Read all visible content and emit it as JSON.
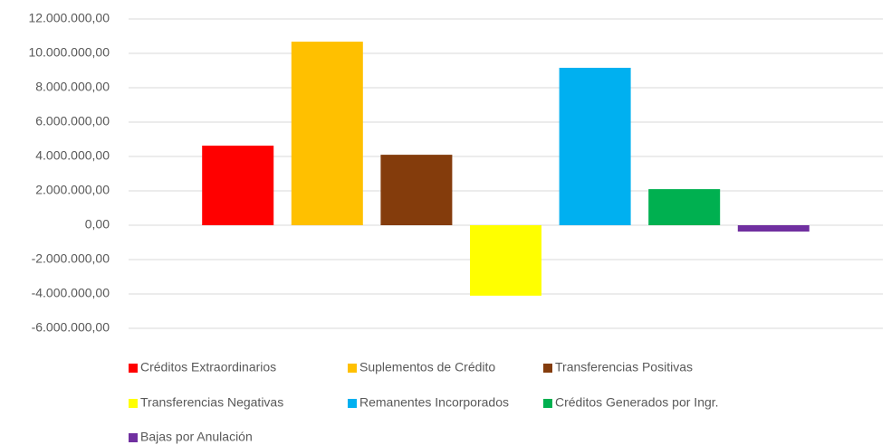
{
  "chart_data": {
    "type": "bar",
    "categories": [
      null
    ],
    "series": [
      {
        "name": "Créditos Extraordinarios",
        "color": "#ff0000",
        "values": [
          4630000
        ]
      },
      {
        "name": "Suplementos de Crédito",
        "color": "#ffc000",
        "values": [
          10680000
        ]
      },
      {
        "name": "Transferencias Positivas",
        "color": "#843c0c",
        "values": [
          4100000
        ]
      },
      {
        "name": "Transferencias Negativas",
        "color": "#ffff00",
        "values": [
          -4100000
        ]
      },
      {
        "name": "Remanentes Incorporados",
        "color": "#00b0f0",
        "values": [
          9160000
        ]
      },
      {
        "name": "Créditos Generados por Ingr.",
        "color": "#00b050",
        "values": [
          2100000
        ]
      },
      {
        "name": "Bajas por Anulación",
        "color": "#7030a0",
        "values": [
          -370000
        ]
      }
    ],
    "ylim": [
      -6000000,
      12000000
    ],
    "yticks": [
      {
        "value": -6000000,
        "label": "-6.000.000,00"
      },
      {
        "value": -4000000,
        "label": "-4.000.000,00"
      },
      {
        "value": -2000000,
        "label": "-2.000.000,00"
      },
      {
        "value": 0,
        "label": "0,00"
      },
      {
        "value": 2000000,
        "label": "2.000.000,00"
      },
      {
        "value": 4000000,
        "label": "4.000.000,00"
      },
      {
        "value": 6000000,
        "label": "6.000.000,00"
      },
      {
        "value": 8000000,
        "label": "8.000.000,00"
      },
      {
        "value": 10000000,
        "label": "10.000.000,00"
      },
      {
        "value": 12000000,
        "label": "12.000.000,00"
      }
    ],
    "grid": true
  }
}
